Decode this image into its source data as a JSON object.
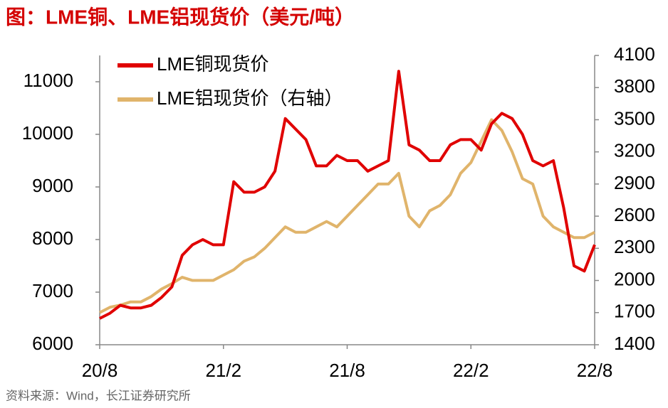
{
  "chart_data": {
    "type": "line",
    "title": "图：LME铜、LME铝现货价（美元/吨）",
    "source": "资料来源：Wind，长江证券研究所",
    "categories": [
      "20/8",
      null,
      null,
      null,
      null,
      null,
      null,
      null,
      null,
      null,
      null,
      null,
      "21/2",
      null,
      null,
      null,
      null,
      null,
      null,
      null,
      null,
      null,
      null,
      null,
      "21/8",
      null,
      null,
      null,
      null,
      null,
      null,
      null,
      null,
      null,
      null,
      null,
      "22/2",
      null,
      null,
      null,
      null,
      null,
      null,
      null,
      null,
      null,
      null,
      null,
      "22/8"
    ],
    "series": [
      {
        "name": "LME铜现货价",
        "color": "#e00000",
        "values": [
          6500,
          6600,
          6750,
          6700,
          6700,
          6750,
          6900,
          7100,
          7700,
          7900,
          8000,
          7900,
          7900,
          9100,
          8900,
          8900,
          9000,
          9300,
          10300,
          10100,
          9900,
          9400,
          9400,
          9600,
          9500,
          9500,
          9300,
          9400,
          9500,
          11200,
          9800,
          9700,
          9500,
          9500,
          9800,
          9900,
          9900,
          9700,
          10200,
          10400,
          10300,
          10000,
          9500,
          9400,
          9500,
          8600,
          7500,
          7400,
          7900
        ]
      },
      {
        "name": "LME铝现货价（右轴）",
        "color": "#e0b46b",
        "axis": "y2",
        "values": [
          1700,
          1750,
          1770,
          1800,
          1800,
          1850,
          1920,
          1970,
          2030,
          2000,
          2000,
          2000,
          2050,
          2100,
          2180,
          2220,
          2300,
          2400,
          2500,
          2450,
          2450,
          2500,
          2550,
          2500,
          2600,
          2700,
          2800,
          2900,
          2900,
          3000,
          2600,
          2500,
          2650,
          2700,
          2800,
          3000,
          3100,
          3300,
          3500,
          3400,
          3200,
          2950,
          2900,
          2600,
          2500,
          2450,
          2400,
          2400,
          2450
        ]
      }
    ],
    "ylim": [
      6000,
      11500
    ],
    "yticks": [
      6000,
      7000,
      8000,
      9000,
      10000,
      11000
    ],
    "y2lim": [
      1400,
      4100
    ],
    "y2ticks": [
      1400,
      1700,
      2000,
      2300,
      2600,
      2900,
      3200,
      3500,
      3800,
      4100
    ],
    "legend": "upper left"
  }
}
